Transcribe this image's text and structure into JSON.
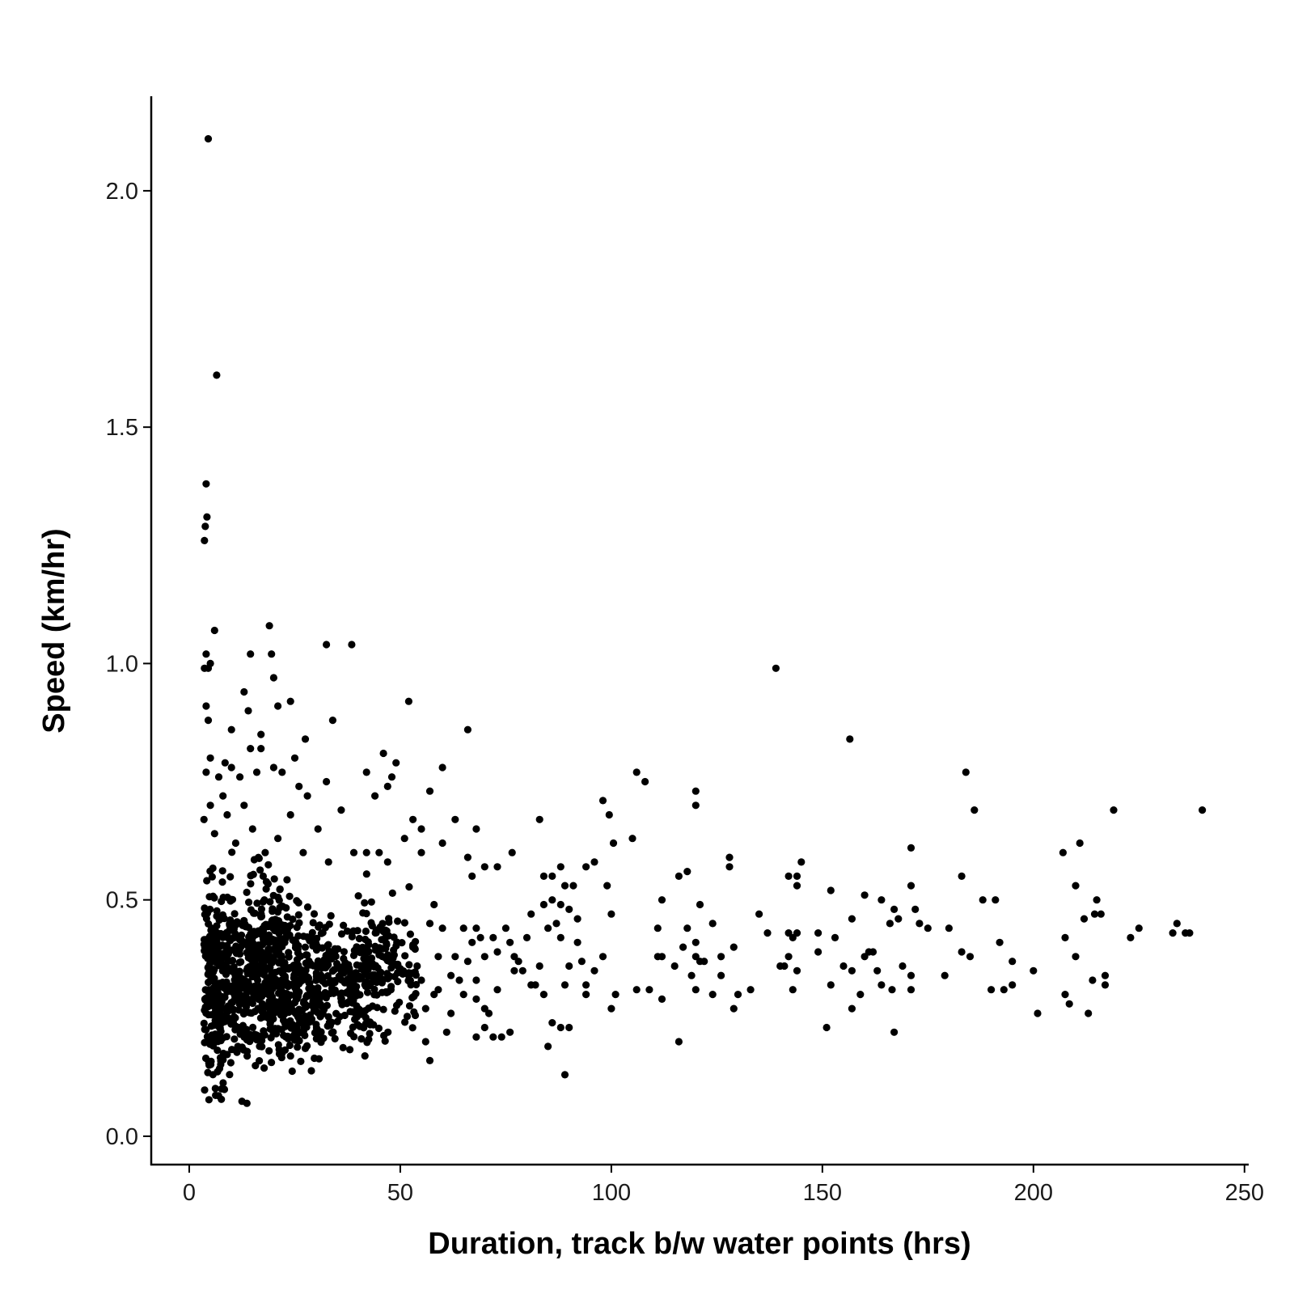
{
  "chart_data": {
    "type": "scatter",
    "title": "",
    "xlabel": "Duration, track b/w water points (hrs)",
    "ylabel": "Speed (km/hr)",
    "xlim": [
      -9,
      251
    ],
    "ylim": [
      -0.06,
      2.2
    ],
    "x_ticks": [
      0,
      50,
      100,
      150,
      200,
      250
    ],
    "x_tick_labels": [
      "0",
      "50",
      "100",
      "150",
      "200",
      "250"
    ],
    "y_ticks": [
      0.0,
      0.5,
      1.0,
      1.5,
      2.0
    ],
    "y_tick_labels": [
      "0.0",
      "0.5",
      "1.0",
      "1.5",
      "2.0"
    ],
    "grid": false,
    "legend": "none",
    "point_color": "#000000",
    "series": [
      {
        "points": [
          [
            4.5,
            2.11
          ],
          [
            6.5,
            1.61
          ],
          [
            4,
            1.38
          ],
          [
            4.2,
            1.31
          ],
          [
            3.8,
            1.29
          ],
          [
            3.6,
            1.26
          ],
          [
            6,
            1.07
          ],
          [
            19,
            1.08
          ],
          [
            19.5,
            1.02
          ],
          [
            14.5,
            1.02
          ],
          [
            20,
            0.97
          ],
          [
            32.5,
            1.04
          ],
          [
            38.5,
            1.04
          ],
          [
            4,
            1.02
          ],
          [
            5,
            1.0
          ],
          [
            3.6,
            0.99
          ],
          [
            4.5,
            0.99
          ],
          [
            13,
            0.94
          ],
          [
            24,
            0.92
          ],
          [
            21,
            0.91
          ],
          [
            4,
            0.91
          ],
          [
            14,
            0.9
          ],
          [
            34,
            0.88
          ],
          [
            4.5,
            0.88
          ],
          [
            10,
            0.86
          ],
          [
            17,
            0.85
          ],
          [
            27.5,
            0.84
          ],
          [
            52,
            0.92
          ],
          [
            66,
            0.86
          ],
          [
            5,
            0.8
          ],
          [
            14.5,
            0.82
          ],
          [
            17,
            0.82
          ],
          [
            25,
            0.8
          ],
          [
            46,
            0.81
          ],
          [
            4,
            0.77
          ],
          [
            7,
            0.76
          ],
          [
            8.5,
            0.79
          ],
          [
            10,
            0.78
          ],
          [
            12,
            0.76
          ],
          [
            16,
            0.77
          ],
          [
            20,
            0.78
          ],
          [
            22,
            0.77
          ],
          [
            26,
            0.74
          ],
          [
            28,
            0.72
          ],
          [
            32.5,
            0.75
          ],
          [
            42,
            0.77
          ],
          [
            48,
            0.76
          ],
          [
            49,
            0.79
          ],
          [
            60,
            0.78
          ],
          [
            57,
            0.73
          ],
          [
            47,
            0.74
          ],
          [
            44,
            0.72
          ],
          [
            36,
            0.69
          ],
          [
            30.5,
            0.65
          ],
          [
            24,
            0.68
          ],
          [
            13,
            0.7
          ],
          [
            8,
            0.72
          ],
          [
            5,
            0.7
          ],
          [
            3.5,
            0.67
          ],
          [
            6,
            0.64
          ],
          [
            9,
            0.68
          ],
          [
            11,
            0.62
          ],
          [
            15,
            0.65
          ],
          [
            18,
            0.6
          ],
          [
            21,
            0.63
          ],
          [
            27,
            0.6
          ],
          [
            33,
            0.58
          ],
          [
            39,
            0.6
          ],
          [
            42,
            0.6
          ],
          [
            45,
            0.6
          ],
          [
            47,
            0.58
          ],
          [
            51,
            0.63
          ],
          [
            53,
            0.67
          ],
          [
            55,
            0.65
          ],
          [
            63,
            0.67
          ],
          [
            55,
            0.6
          ],
          [
            60,
            0.62
          ],
          [
            66,
            0.59
          ],
          [
            68,
            0.65
          ],
          [
            70,
            0.57
          ],
          [
            73,
            0.57
          ],
          [
            67,
            0.55
          ],
          [
            76.5,
            0.6
          ],
          [
            83,
            0.67
          ],
          [
            84,
            0.55
          ],
          [
            86,
            0.55
          ],
          [
            88,
            0.57
          ],
          [
            94,
            0.57
          ],
          [
            96,
            0.58
          ],
          [
            98,
            0.71
          ],
          [
            99.5,
            0.68
          ],
          [
            100.5,
            0.62
          ],
          [
            99,
            0.53
          ],
          [
            105,
            0.63
          ],
          [
            106,
            0.77
          ],
          [
            108,
            0.75
          ],
          [
            120,
            0.73
          ],
          [
            120,
            0.7
          ],
          [
            116,
            0.55
          ],
          [
            118,
            0.56
          ],
          [
            112,
            0.5
          ],
          [
            121,
            0.49
          ],
          [
            128,
            0.59
          ],
          [
            128,
            0.57
          ],
          [
            139,
            0.99
          ],
          [
            142,
            0.55
          ],
          [
            144,
            0.55
          ],
          [
            145,
            0.58
          ],
          [
            144,
            0.53
          ],
          [
            152,
            0.52
          ],
          [
            156.5,
            0.84
          ],
          [
            160,
            0.51
          ],
          [
            164,
            0.5
          ],
          [
            171,
            0.61
          ],
          [
            171,
            0.53
          ],
          [
            183,
            0.55
          ],
          [
            184,
            0.77
          ],
          [
            186,
            0.69
          ],
          [
            188,
            0.5
          ],
          [
            191,
            0.5
          ],
          [
            207,
            0.6
          ],
          [
            211,
            0.62
          ],
          [
            210,
            0.53
          ],
          [
            219,
            0.69
          ],
          [
            215,
            0.5
          ],
          [
            240,
            0.69
          ],
          [
            234,
            0.45
          ],
          [
            236,
            0.43
          ],
          [
            237,
            0.43
          ],
          [
            233,
            0.43
          ],
          [
            225,
            0.44
          ],
          [
            223,
            0.42
          ],
          [
            216,
            0.47
          ],
          [
            214.5,
            0.47
          ],
          [
            212,
            0.46
          ],
          [
            207.5,
            0.42
          ],
          [
            210,
            0.38
          ],
          [
            217,
            0.34
          ],
          [
            217,
            0.32
          ],
          [
            214,
            0.33
          ],
          [
            207.5,
            0.3
          ],
          [
            208.5,
            0.28
          ],
          [
            213,
            0.26
          ],
          [
            201,
            0.26
          ],
          [
            200,
            0.35
          ],
          [
            195,
            0.37
          ],
          [
            193,
            0.31
          ],
          [
            195,
            0.32
          ],
          [
            192,
            0.41
          ],
          [
            190,
            0.31
          ],
          [
            185,
            0.38
          ],
          [
            183,
            0.39
          ],
          [
            180,
            0.44
          ],
          [
            179,
            0.34
          ],
          [
            175,
            0.44
          ],
          [
            172,
            0.48
          ],
          [
            173,
            0.45
          ],
          [
            171,
            0.34
          ],
          [
            171,
            0.31
          ],
          [
            169,
            0.36
          ],
          [
            168,
            0.46
          ],
          [
            167,
            0.48
          ],
          [
            166,
            0.45
          ],
          [
            166.5,
            0.31
          ],
          [
            167,
            0.22
          ],
          [
            164,
            0.32
          ],
          [
            163,
            0.35
          ],
          [
            162,
            0.39
          ],
          [
            161,
            0.39
          ],
          [
            160,
            0.38
          ],
          [
            159,
            0.3
          ],
          [
            157,
            0.46
          ],
          [
            157,
            0.35
          ],
          [
            157,
            0.27
          ],
          [
            155,
            0.36
          ],
          [
            153,
            0.42
          ],
          [
            151,
            0.23
          ],
          [
            152,
            0.32
          ],
          [
            149,
            0.39
          ],
          [
            149,
            0.43
          ],
          [
            144,
            0.43
          ],
          [
            143,
            0.42
          ],
          [
            144,
            0.35
          ],
          [
            142,
            0.43
          ],
          [
            142,
            0.38
          ],
          [
            140,
            0.36
          ],
          [
            141,
            0.36
          ],
          [
            143,
            0.31
          ],
          [
            137,
            0.43
          ],
          [
            135,
            0.47
          ],
          [
            133,
            0.31
          ],
          [
            130,
            0.3
          ],
          [
            129,
            0.4
          ],
          [
            129,
            0.27
          ],
          [
            126,
            0.38
          ],
          [
            126,
            0.34
          ],
          [
            124,
            0.3
          ],
          [
            124,
            0.45
          ],
          [
            122,
            0.37
          ],
          [
            121,
            0.37
          ],
          [
            120,
            0.38
          ],
          [
            120,
            0.41
          ],
          [
            119,
            0.34
          ],
          [
            120,
            0.31
          ],
          [
            118,
            0.44
          ],
          [
            117,
            0.4
          ],
          [
            116,
            0.2
          ],
          [
            115,
            0.36
          ],
          [
            112,
            0.38
          ],
          [
            111,
            0.38
          ],
          [
            111,
            0.44
          ],
          [
            112,
            0.29
          ],
          [
            109,
            0.31
          ],
          [
            106,
            0.31
          ],
          [
            101,
            0.3
          ],
          [
            100,
            0.27
          ],
          [
            100,
            0.47
          ],
          [
            98,
            0.38
          ],
          [
            96,
            0.35
          ],
          [
            94,
            0.32
          ],
          [
            94,
            0.3
          ],
          [
            93,
            0.37
          ],
          [
            92,
            0.46
          ],
          [
            92,
            0.41
          ],
          [
            90,
            0.36
          ],
          [
            91,
            0.53
          ],
          [
            90,
            0.48
          ],
          [
            89,
            0.32
          ],
          [
            89,
            0.53
          ],
          [
            88,
            0.49
          ],
          [
            88,
            0.42
          ],
          [
            87,
            0.45
          ],
          [
            86,
            0.5
          ],
          [
            85,
            0.44
          ],
          [
            84,
            0.49
          ],
          [
            83,
            0.36
          ],
          [
            82,
            0.32
          ],
          [
            81,
            0.47
          ],
          [
            79,
            0.35
          ],
          [
            80,
            0.42
          ],
          [
            77,
            0.38
          ],
          [
            76,
            0.41
          ],
          [
            77,
            0.35
          ],
          [
            76,
            0.22
          ],
          [
            75,
            0.44
          ],
          [
            73,
            0.39
          ],
          [
            73,
            0.31
          ],
          [
            72,
            0.42
          ],
          [
            71,
            0.26
          ],
          [
            70,
            0.38
          ],
          [
            70,
            0.27
          ],
          [
            70,
            0.23
          ],
          [
            69,
            0.42
          ],
          [
            68,
            0.44
          ],
          [
            68,
            0.33
          ],
          [
            68,
            0.29
          ],
          [
            67,
            0.41
          ],
          [
            66,
            0.37
          ],
          [
            65,
            0.44
          ],
          [
            65,
            0.3
          ],
          [
            64,
            0.33
          ],
          [
            63,
            0.38
          ],
          [
            62,
            0.26
          ],
          [
            62,
            0.34
          ],
          [
            61,
            0.22
          ],
          [
            60,
            0.44
          ],
          [
            59,
            0.38
          ],
          [
            59,
            0.31
          ],
          [
            58,
            0.3
          ],
          [
            58,
            0.49
          ],
          [
            57,
            0.45
          ],
          [
            57,
            0.16
          ],
          [
            56,
            0.2
          ],
          [
            56,
            0.27
          ],
          [
            55,
            0.33
          ],
          [
            54,
            0.36
          ],
          [
            53,
            0.4
          ],
          [
            52,
            0.34
          ],
          [
            89,
            0.13
          ],
          [
            88,
            0.23
          ],
          [
            86,
            0.24
          ],
          [
            85,
            0.19
          ],
          [
            84,
            0.3
          ],
          [
            81,
            0.32
          ],
          [
            78,
            0.37
          ],
          [
            74,
            0.21
          ],
          [
            72,
            0.21
          ],
          [
            68,
            0.21
          ],
          [
            90,
            0.23
          ]
        ],
        "dense": [
          {
            "x": [
              3.5,
              8
            ],
            "y": [
              0.04,
              0.7
            ],
            "n": 190
          },
          {
            "x": [
              8,
              14
            ],
            "y": [
              0.06,
              0.7
            ],
            "n": 170
          },
          {
            "x": [
              14,
              20
            ],
            "y": [
              0.1,
              0.7
            ],
            "n": 230
          },
          {
            "x": [
              20,
              26
            ],
            "y": [
              0.12,
              0.65
            ],
            "n": 200
          },
          {
            "x": [
              26,
              32
            ],
            "y": [
              0.13,
              0.6
            ],
            "n": 130
          },
          {
            "x": [
              32,
              40
            ],
            "y": [
              0.16,
              0.6
            ],
            "n": 130
          },
          {
            "x": [
              40,
              47
            ],
            "y": [
              0.17,
              0.62
            ],
            "n": 120
          },
          {
            "x": [
              47,
              54
            ],
            "y": [
              0.22,
              0.6
            ],
            "n": 60
          }
        ]
      }
    ]
  }
}
